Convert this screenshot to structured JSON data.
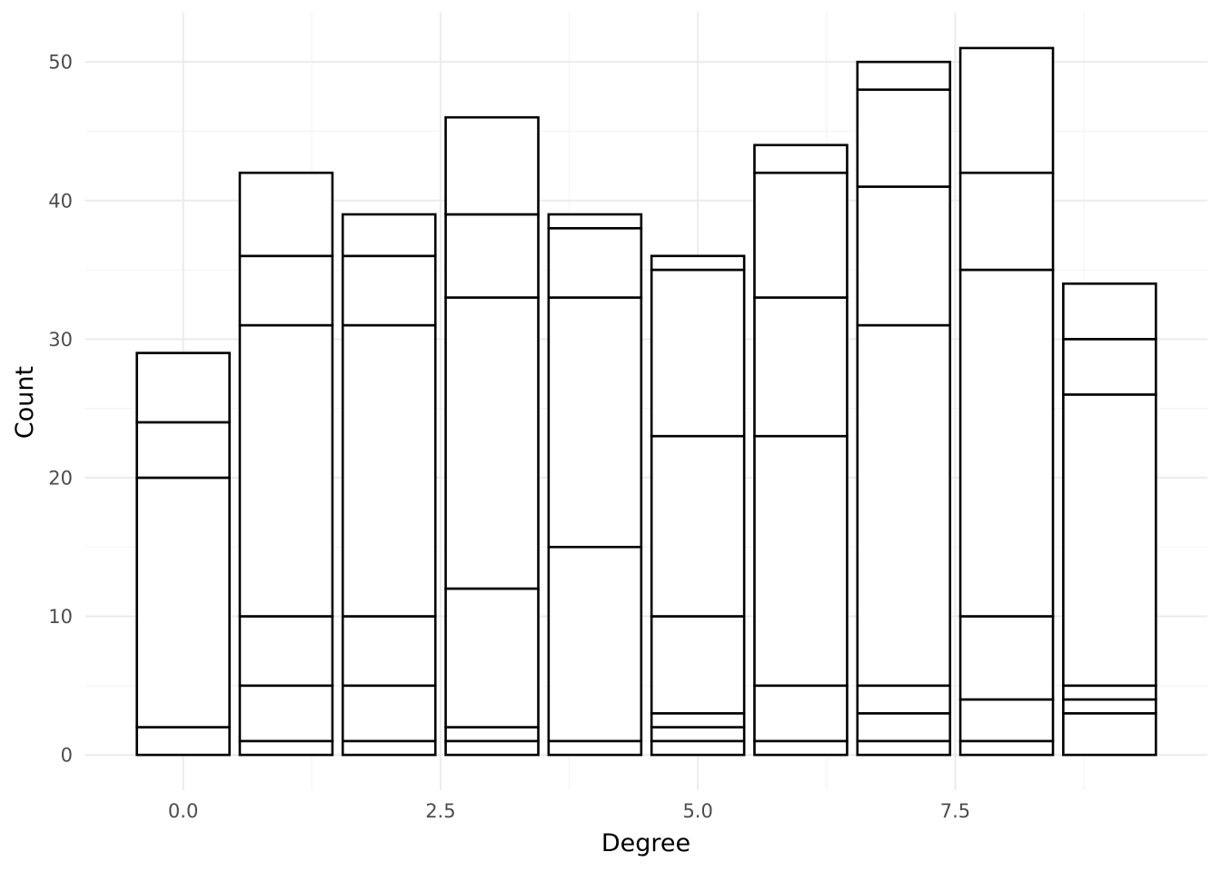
{
  "chart_data": {
    "type": "bar",
    "stacked": true,
    "xlabel": "Degree",
    "ylabel": "Count",
    "xlim": [
      -0.95,
      9.95
    ],
    "ylim": [
      -2.55,
      53.55
    ],
    "x_ticks": [
      0.0,
      2.5,
      5.0,
      7.5
    ],
    "x_tick_labels": [
      "0.0",
      "2.5",
      "5.0",
      "7.5"
    ],
    "y_ticks": [
      0,
      10,
      20,
      30,
      40,
      50
    ],
    "y_tick_labels": [
      "0",
      "10",
      "20",
      "30",
      "40",
      "50"
    ],
    "grid": true,
    "bar_width": 0.9,
    "bars": [
      {
        "x": 0,
        "boundaries": [
          0,
          2,
          20,
          24,
          29
        ]
      },
      {
        "x": 1,
        "boundaries": [
          0,
          1,
          5,
          10,
          31,
          36,
          42
        ]
      },
      {
        "x": 2,
        "boundaries": [
          0,
          1,
          5,
          10,
          31,
          36,
          39
        ]
      },
      {
        "x": 3,
        "boundaries": [
          0,
          1,
          2,
          12,
          33,
          39,
          46
        ]
      },
      {
        "x": 4,
        "boundaries": [
          0,
          1,
          15,
          33,
          38,
          39
        ]
      },
      {
        "x": 5,
        "boundaries": [
          0,
          1,
          2,
          3,
          10,
          23,
          35,
          36
        ]
      },
      {
        "x": 6,
        "boundaries": [
          0,
          1,
          5,
          23,
          33,
          42,
          44
        ]
      },
      {
        "x": 7,
        "boundaries": [
          0,
          1,
          3,
          5,
          31,
          41,
          48,
          50
        ]
      },
      {
        "x": 8,
        "boundaries": [
          0,
          1,
          4,
          10,
          35,
          42,
          51
        ]
      },
      {
        "x": 9,
        "boundaries": [
          0,
          3,
          4,
          5,
          26,
          30,
          34
        ]
      }
    ]
  }
}
